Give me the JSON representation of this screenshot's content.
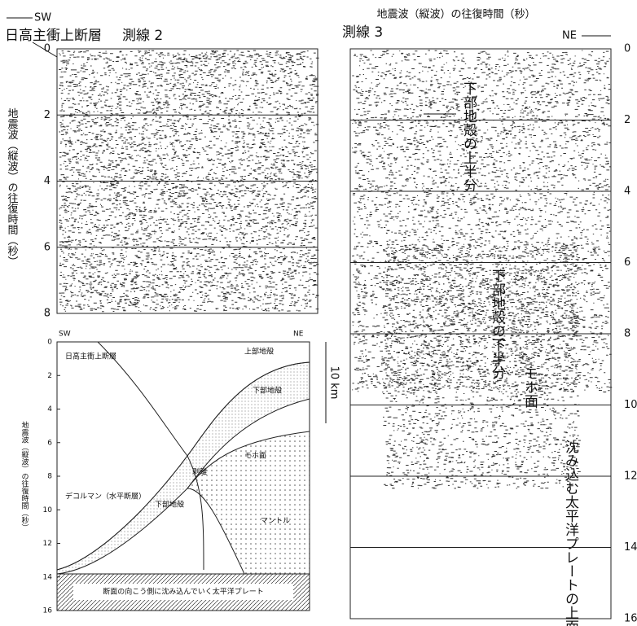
{
  "header": {
    "left_marker": "SW",
    "fault": "日高主衝上断層",
    "line2": "測線 2",
    "line3": "測線 3",
    "right_marker": "NE",
    "time_axis_label": "地震波（縦波）の往復時間（秒）"
  },
  "profile_left": {
    "ticks": [
      "0",
      "2",
      "4",
      "6",
      "8"
    ],
    "axis_label": "地震波（縦波）の往復時間（秒）",
    "scale": "10 km"
  },
  "profile_right": {
    "ticks": [
      "0",
      "2",
      "4",
      "6",
      "8",
      "10",
      "12",
      "14",
      "16"
    ],
    "annotations": [
      "下部地殻の上半分",
      "下部地殻の下半分",
      "モホ面",
      "沈み込む太平洋プレートの上面"
    ]
  },
  "inset": {
    "left_marker": "SW",
    "right_marker": "NE",
    "axis_label": "地震波（縦波）の往復時間（秒）",
    "ticks": [
      "0",
      "2",
      "4",
      "6",
      "8",
      "10",
      "12",
      "14",
      "16"
    ],
    "fault": "日高主衝上断層",
    "upper_crust": "上部地殻",
    "lower_crust_a": "下部地殻",
    "lower_crust_b": "下部地殻",
    "decollement": "デコルマン（水平断層）",
    "detachment": "剥離",
    "moho": "モホ面",
    "mantle": "マントル",
    "plate": "断面の向こう側に沈み込んでいく太平洋プレート"
  }
}
